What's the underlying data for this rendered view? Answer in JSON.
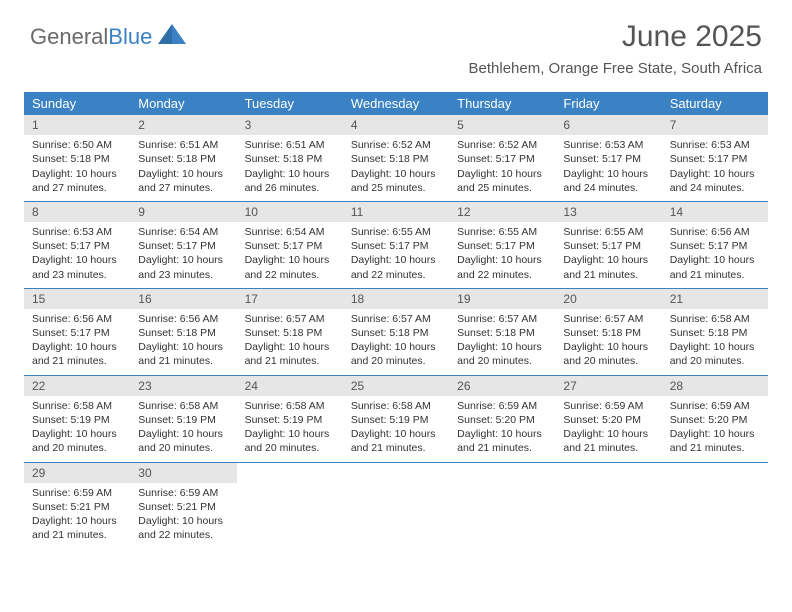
{
  "logo": {
    "text1": "General",
    "text2": "Blue"
  },
  "header": {
    "title": "June 2025",
    "location": "Bethlehem, Orange Free State, South Africa"
  },
  "colors": {
    "header_bg": "#3b82c4",
    "header_text": "#ffffff",
    "daynum_bg": "#e6e6e6",
    "text": "#333333",
    "rule": "#3b82c4"
  },
  "dayNames": [
    "Sunday",
    "Monday",
    "Tuesday",
    "Wednesday",
    "Thursday",
    "Friday",
    "Saturday"
  ],
  "weeks": [
    [
      {
        "day": "1",
        "sunrise": "Sunrise: 6:50 AM",
        "sunset": "Sunset: 5:18 PM",
        "daylight": "Daylight: 10 hours and 27 minutes."
      },
      {
        "day": "2",
        "sunrise": "Sunrise: 6:51 AM",
        "sunset": "Sunset: 5:18 PM",
        "daylight": "Daylight: 10 hours and 27 minutes."
      },
      {
        "day": "3",
        "sunrise": "Sunrise: 6:51 AM",
        "sunset": "Sunset: 5:18 PM",
        "daylight": "Daylight: 10 hours and 26 minutes."
      },
      {
        "day": "4",
        "sunrise": "Sunrise: 6:52 AM",
        "sunset": "Sunset: 5:18 PM",
        "daylight": "Daylight: 10 hours and 25 minutes."
      },
      {
        "day": "5",
        "sunrise": "Sunrise: 6:52 AM",
        "sunset": "Sunset: 5:17 PM",
        "daylight": "Daylight: 10 hours and 25 minutes."
      },
      {
        "day": "6",
        "sunrise": "Sunrise: 6:53 AM",
        "sunset": "Sunset: 5:17 PM",
        "daylight": "Daylight: 10 hours and 24 minutes."
      },
      {
        "day": "7",
        "sunrise": "Sunrise: 6:53 AM",
        "sunset": "Sunset: 5:17 PM",
        "daylight": "Daylight: 10 hours and 24 minutes."
      }
    ],
    [
      {
        "day": "8",
        "sunrise": "Sunrise: 6:53 AM",
        "sunset": "Sunset: 5:17 PM",
        "daylight": "Daylight: 10 hours and 23 minutes."
      },
      {
        "day": "9",
        "sunrise": "Sunrise: 6:54 AM",
        "sunset": "Sunset: 5:17 PM",
        "daylight": "Daylight: 10 hours and 23 minutes."
      },
      {
        "day": "10",
        "sunrise": "Sunrise: 6:54 AM",
        "sunset": "Sunset: 5:17 PM",
        "daylight": "Daylight: 10 hours and 22 minutes."
      },
      {
        "day": "11",
        "sunrise": "Sunrise: 6:55 AM",
        "sunset": "Sunset: 5:17 PM",
        "daylight": "Daylight: 10 hours and 22 minutes."
      },
      {
        "day": "12",
        "sunrise": "Sunrise: 6:55 AM",
        "sunset": "Sunset: 5:17 PM",
        "daylight": "Daylight: 10 hours and 22 minutes."
      },
      {
        "day": "13",
        "sunrise": "Sunrise: 6:55 AM",
        "sunset": "Sunset: 5:17 PM",
        "daylight": "Daylight: 10 hours and 21 minutes."
      },
      {
        "day": "14",
        "sunrise": "Sunrise: 6:56 AM",
        "sunset": "Sunset: 5:17 PM",
        "daylight": "Daylight: 10 hours and 21 minutes."
      }
    ],
    [
      {
        "day": "15",
        "sunrise": "Sunrise: 6:56 AM",
        "sunset": "Sunset: 5:17 PM",
        "daylight": "Daylight: 10 hours and 21 minutes."
      },
      {
        "day": "16",
        "sunrise": "Sunrise: 6:56 AM",
        "sunset": "Sunset: 5:18 PM",
        "daylight": "Daylight: 10 hours and 21 minutes."
      },
      {
        "day": "17",
        "sunrise": "Sunrise: 6:57 AM",
        "sunset": "Sunset: 5:18 PM",
        "daylight": "Daylight: 10 hours and 21 minutes."
      },
      {
        "day": "18",
        "sunrise": "Sunrise: 6:57 AM",
        "sunset": "Sunset: 5:18 PM",
        "daylight": "Daylight: 10 hours and 20 minutes."
      },
      {
        "day": "19",
        "sunrise": "Sunrise: 6:57 AM",
        "sunset": "Sunset: 5:18 PM",
        "daylight": "Daylight: 10 hours and 20 minutes."
      },
      {
        "day": "20",
        "sunrise": "Sunrise: 6:57 AM",
        "sunset": "Sunset: 5:18 PM",
        "daylight": "Daylight: 10 hours and 20 minutes."
      },
      {
        "day": "21",
        "sunrise": "Sunrise: 6:58 AM",
        "sunset": "Sunset: 5:18 PM",
        "daylight": "Daylight: 10 hours and 20 minutes."
      }
    ],
    [
      {
        "day": "22",
        "sunrise": "Sunrise: 6:58 AM",
        "sunset": "Sunset: 5:19 PM",
        "daylight": "Daylight: 10 hours and 20 minutes."
      },
      {
        "day": "23",
        "sunrise": "Sunrise: 6:58 AM",
        "sunset": "Sunset: 5:19 PM",
        "daylight": "Daylight: 10 hours and 20 minutes."
      },
      {
        "day": "24",
        "sunrise": "Sunrise: 6:58 AM",
        "sunset": "Sunset: 5:19 PM",
        "daylight": "Daylight: 10 hours and 20 minutes."
      },
      {
        "day": "25",
        "sunrise": "Sunrise: 6:58 AM",
        "sunset": "Sunset: 5:19 PM",
        "daylight": "Daylight: 10 hours and 21 minutes."
      },
      {
        "day": "26",
        "sunrise": "Sunrise: 6:59 AM",
        "sunset": "Sunset: 5:20 PM",
        "daylight": "Daylight: 10 hours and 21 minutes."
      },
      {
        "day": "27",
        "sunrise": "Sunrise: 6:59 AM",
        "sunset": "Sunset: 5:20 PM",
        "daylight": "Daylight: 10 hours and 21 minutes."
      },
      {
        "day": "28",
        "sunrise": "Sunrise: 6:59 AM",
        "sunset": "Sunset: 5:20 PM",
        "daylight": "Daylight: 10 hours and 21 minutes."
      }
    ],
    [
      {
        "day": "29",
        "sunrise": "Sunrise: 6:59 AM",
        "sunset": "Sunset: 5:21 PM",
        "daylight": "Daylight: 10 hours and 21 minutes."
      },
      {
        "day": "30",
        "sunrise": "Sunrise: 6:59 AM",
        "sunset": "Sunset: 5:21 PM",
        "daylight": "Daylight: 10 hours and 22 minutes."
      },
      null,
      null,
      null,
      null,
      null
    ]
  ]
}
